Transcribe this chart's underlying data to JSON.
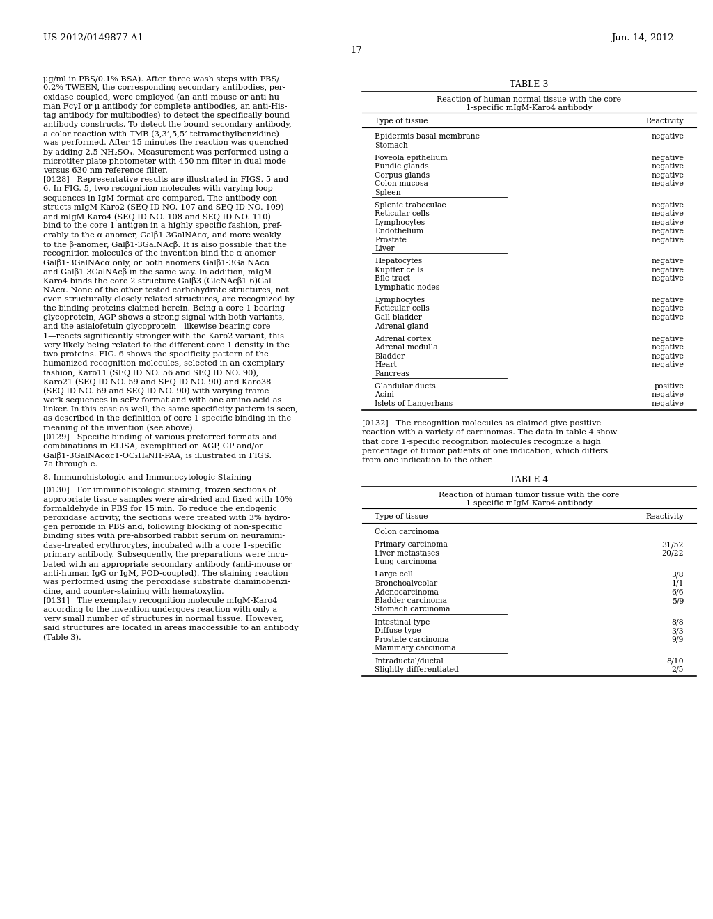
{
  "header_left": "US 2012/0149877 A1",
  "header_right": "Jun. 14, 2012",
  "page_number": "17",
  "left_col_lines": [
    "μg/ml in PBS/0.1% BSA). After three wash steps with PBS/",
    "0.2% TWEEN, the corresponding secondary antibodies, per-",
    "oxidase-coupled, were employed (an anti-mouse or anti-hu-",
    "man FcγI or μ antibody for complete antibodies, an anti-His-",
    "tag antibody for multibodies) to detect the specifically bound",
    "antibody constructs. To detect the bound secondary antibody,",
    "a color reaction with TMB (3,3’,5,5’-tetramethylbenzidine)",
    "was performed. After 15 minutes the reaction was quenched",
    "by adding 2.5 NH₂SO₄. Measurement was performed using a",
    "microtiter plate photometer with 450 nm filter in dual mode",
    "versus 630 nm reference filter.",
    "[0128]   Representative results are illustrated in FIGS. 5 and",
    "6. In FIG. 5, two recognition molecules with varying loop",
    "sequences in IgM format are compared. The antibody con-",
    "structs mIgM-Karo2 (SEQ ID NO. 107 and SEQ ID NO. 109)",
    "and mIgM-Karo4 (SEQ ID NO. 108 and SEQ ID NO. 110)",
    "bind to the core 1 antigen in a highly specific fashion, pref-",
    "erably to the α-anomer, Galβ1-3GalNAcα, and more weakly",
    "to the β-anomer, Galβ1-3GalNAcβ. It is also possible that the",
    "recognition molecules of the invention bind the α-anomer",
    "Galβ1-3GalNAcα only, or both anomers Galβ1-3GalNAcα",
    "and Galβ1-3GalNAcβ in the same way. In addition, mIgM-",
    "Karo4 binds the core 2 structure Galβ3 (GlcNAcβ1-6)Gal-",
    "NAcα. None of the other tested carbohydrate structures, not",
    "even structurally closely related structures, are recognized by",
    "the binding proteins claimed herein. Being a core 1-bearing",
    "glycoprotein, AGP shows a strong signal with both variants,",
    "and the asialofetuin glycoprotein—likewise bearing core",
    "1—reacts significantly stronger with the Karo2 variant, this",
    "very likely being related to the different core 1 density in the",
    "two proteins. FIG. 6 shows the specificity pattern of the",
    "humanized recognition molecules, selected in an exemplary",
    "fashion, Karo11 (SEQ ID NO. 56 and SEQ ID NO. 90),",
    "Karo21 (SEQ ID NO. 59 and SEQ ID NO. 90) and Karo38",
    "(SEQ ID NO. 69 and SEQ ID NO. 90) with varying frame-",
    "work sequences in scFv format and with one amino acid as",
    "linker. In this case as well, the same specificity pattern is seen,",
    "as described in the definition of core 1-specific binding in the",
    "meaning of the invention (see above).",
    "[0129]   Specific binding of various preferred formats and",
    "combinations in ELISA, exemplified on AGP, GP and/or",
    "Galβ1-3GalNAcαc1-OC₃H₆NH-PAA, is illustrated in FIGS.",
    "7a through e.",
    "",
    "8. Immunohistologic and Immunocytologic Staining",
    "",
    "[0130]   For immunohistologic staining, frozen sections of",
    "appropriate tissue samples were air-dried and fixed with 10%",
    "formaldehyde in PBS for 15 min. To reduce the endogenic",
    "peroxidase activity, the sections were treated with 3% hydro-",
    "gen peroxide in PBS and, following blocking of non-specific",
    "binding sites with pre-absorbed rabbit serum on neuramini-",
    "dase-treated erythrocytes, incubated with a core 1-specific",
    "primary antibody. Subsequently, the preparations were incu-",
    "bated with an appropriate secondary antibody (anti-mouse or",
    "anti-human IgG or IgM, POD-coupled). The staining reaction",
    "was performed using the peroxidase substrate diaminobenzi-",
    "dine, and counter-staining with hematoxylin.",
    "[0131]   The exemplary recognition molecule mIgM-Karo4",
    "according to the invention undergoes reaction with only a",
    "very small number of structures in normal tissue. However,",
    "said structures are located in areas inaccessible to an antibody",
    "(Table 3)."
  ],
  "para_0132_lines": [
    "[0132]   The recognition molecules as claimed give positive",
    "reaction with a variety of carcinomas. The data in table 4 show",
    "that core 1-specific recognition molecules recognize a high",
    "percentage of tumor patients of one indication, which differs",
    "from one indication to the other."
  ],
  "table3_title": "TABLE 3",
  "table3_subtitle1": "Reaction of human normal tissue with the core",
  "table3_subtitle2": "1-specific mIgM-Karo4 antibody",
  "table3_col1": "Type of tissue",
  "table3_col2": "Reactivity",
  "table3_rows": [
    [
      "Epidermis-basal membrane",
      "negative",
      false
    ],
    [
      "Stomach",
      "",
      true
    ],
    [
      "",
      "",
      false
    ],
    [
      "Foveola epithelium",
      "negative",
      false
    ],
    [
      "Fundic glands",
      "negative",
      false
    ],
    [
      "Corpus glands",
      "negative",
      false
    ],
    [
      "Colon mucosa",
      "negative",
      false
    ],
    [
      "Spleen",
      "",
      true
    ],
    [
      "",
      "",
      false
    ],
    [
      "Splenic trabeculae",
      "negative",
      false
    ],
    [
      "Reticular cells",
      "negative",
      false
    ],
    [
      "Lymphocytes",
      "negative",
      false
    ],
    [
      "Endothelium",
      "negative",
      false
    ],
    [
      "Prostate",
      "negative",
      false
    ],
    [
      "Liver",
      "",
      true
    ],
    [
      "",
      "",
      false
    ],
    [
      "Hepatocytes",
      "negative",
      false
    ],
    [
      "Kupffer cells",
      "negative",
      false
    ],
    [
      "Bile tract",
      "negative",
      false
    ],
    [
      "Lymphatic nodes",
      "",
      true
    ],
    [
      "",
      "",
      false
    ],
    [
      "Lymphocytes",
      "negative",
      false
    ],
    [
      "Reticular cells",
      "negative",
      false
    ],
    [
      "Gall bladder",
      "negative",
      false
    ],
    [
      "Adrenal gland",
      "",
      true
    ],
    [
      "",
      "",
      false
    ],
    [
      "Adrenal cortex",
      "negative",
      false
    ],
    [
      "Adrenal medulla",
      "negative",
      false
    ],
    [
      "Bladder",
      "negative",
      false
    ],
    [
      "Heart",
      "negative",
      false
    ],
    [
      "Pancreas",
      "",
      true
    ],
    [
      "",
      "",
      false
    ],
    [
      "Glandular ducts",
      "positive",
      false
    ],
    [
      "Acini",
      "negative",
      false
    ],
    [
      "Islets of Langerhans",
      "negative",
      false
    ]
  ],
  "table4_title": "TABLE 4",
  "table4_subtitle1": "Reaction of human tumor tissue with the core",
  "table4_subtitle2": "1-specific mIgM-Karo4 antibody",
  "table4_col1": "Type of tissue",
  "table4_col2": "Reactivity",
  "table4_rows": [
    [
      "Colon carcinoma",
      "",
      true
    ],
    [
      "",
      "",
      false
    ],
    [
      "Primary carcinoma",
      "31/52",
      false
    ],
    [
      "Liver metastases",
      "20/22",
      false
    ],
    [
      "Lung carcinoma",
      "",
      true
    ],
    [
      "",
      "",
      false
    ],
    [
      "Large cell",
      "3/8",
      false
    ],
    [
      "Bronchoalveolar",
      "1/1",
      false
    ],
    [
      "Adenocarcinoma",
      "6/6",
      false
    ],
    [
      "Bladder carcinoma",
      "5/9",
      false
    ],
    [
      "Stomach carcinoma",
      "",
      true
    ],
    [
      "",
      "",
      false
    ],
    [
      "Intestinal type",
      "8/8",
      false
    ],
    [
      "Diffuse type",
      "3/3",
      false
    ],
    [
      "Prostate carcinoma",
      "9/9",
      false
    ],
    [
      "Mammary carcinoma",
      "",
      true
    ],
    [
      "",
      "",
      false
    ],
    [
      "Intraductal/ductal",
      "8/10",
      false
    ],
    [
      "Slightly differentiated",
      "2/5",
      false
    ]
  ]
}
